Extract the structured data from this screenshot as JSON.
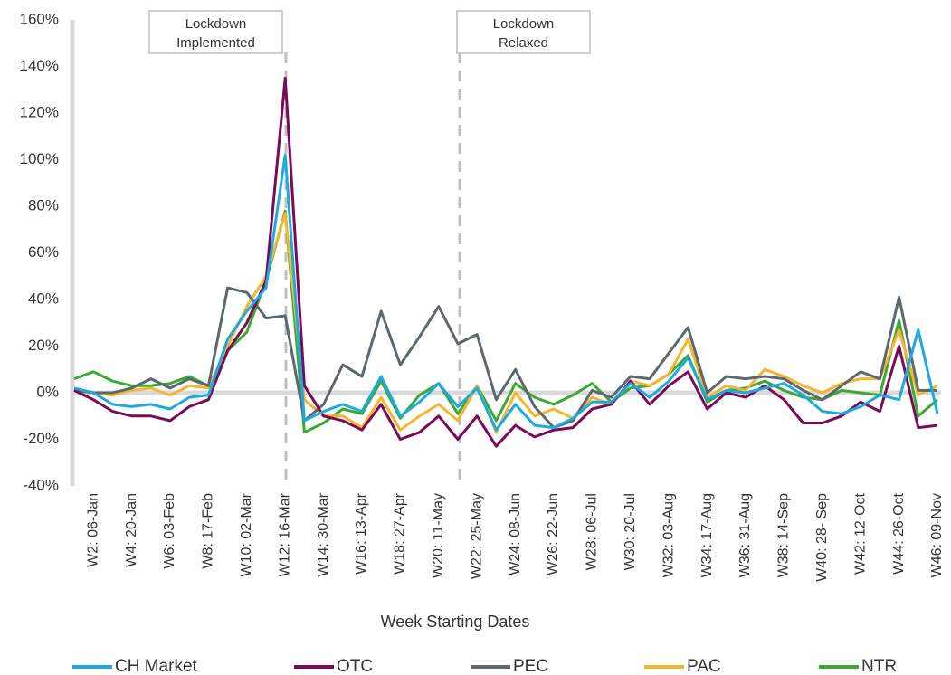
{
  "chart_data": {
    "type": "line",
    "xlabel": "Week Starting Dates",
    "categories": [
      null,
      "W2: 06-Jan",
      null,
      "W4: 20-Jan",
      null,
      "W6: 03-Feb",
      null,
      "W8: 17-Feb",
      null,
      "W10: 02-Mar",
      null,
      "W12: 16-Mar",
      null,
      "W14: 30-Mar",
      null,
      "W16: 13-Apr",
      null,
      "W18: 27-Apr",
      null,
      "W20: 11-May",
      null,
      "W22: 25-May",
      null,
      "W24: 08-Jun",
      null,
      "W26: 22-Jun",
      null,
      "W28: 06-Jul",
      null,
      "W30: 20-Jul",
      null,
      "W32: 03-Aug",
      null,
      "W34: 17-Aug",
      null,
      "W36: 31-Aug",
      null,
      "W38: 14-Sep",
      null,
      "W40: 28- Sep",
      null,
      "W42: 12-Oct",
      null,
      "W44: 26-Oct",
      null,
      "W46: 09-Nov"
    ],
    "series": [
      {
        "name": "CH Market",
        "color": "#1ea9e1",
        "values": [
          2,
          0,
          -5,
          -6,
          -5,
          -7,
          -2,
          -1,
          23,
          35,
          45,
          102,
          -12,
          -8,
          -5,
          -8,
          7,
          -10,
          -4,
          4,
          -6,
          2,
          -16,
          -5,
          -14,
          -15,
          -11,
          -4,
          -4,
          4,
          -2,
          5,
          15,
          -3,
          1,
          0,
          2,
          4,
          -1,
          -8,
          -9,
          -6,
          -1,
          -3,
          27,
          -9
        ]
      },
      {
        "name": "OTC",
        "color": "#7b0a58",
        "values": [
          1,
          -3,
          -8,
          -10,
          -10,
          -12,
          -6,
          -3,
          18,
          30,
          48,
          135,
          3,
          -10,
          -12,
          -16,
          -5,
          -20,
          -17,
          -10,
          -20,
          -10,
          -23,
          -14,
          -19,
          -16,
          -15,
          -7,
          -5,
          5,
          -5,
          3,
          9,
          -7,
          0,
          -2,
          3,
          -3,
          -13,
          -13,
          -10,
          -4,
          -8,
          20,
          -15,
          -14
        ]
      },
      {
        "name": "PEC",
        "color": "#5d6770",
        "values": [
          1,
          0,
          0,
          2,
          6,
          2,
          6,
          3,
          45,
          43,
          32,
          33,
          -12,
          -5,
          12,
          7,
          35,
          12,
          24,
          37,
          21,
          25,
          -3,
          10,
          -6,
          -15,
          -12,
          1,
          -2,
          7,
          6,
          17,
          28,
          0,
          7,
          6,
          7,
          6,
          1,
          -3,
          3,
          9,
          6,
          41,
          1,
          1
        ]
      },
      {
        "name": "PAC",
        "color": "#f5b52e",
        "values": [
          1,
          0,
          -1,
          1,
          2,
          -1,
          3,
          2,
          20,
          37,
          50,
          77,
          -3,
          -10,
          -10,
          -15,
          -2,
          -16,
          -10,
          -5,
          -12,
          3,
          -17,
          0,
          -10,
          -7,
          -11,
          -2,
          -5,
          5,
          3,
          8,
          23,
          -2,
          3,
          1,
          10,
          7,
          3,
          0,
          4,
          6,
          6,
          27,
          -1,
          3
        ]
      },
      {
        "name": "NTR",
        "color": "#3aaa35",
        "values": [
          6,
          9,
          5,
          3,
          3,
          4,
          7,
          3,
          18,
          26,
          48,
          78,
          -17,
          -13,
          -7,
          -9,
          5,
          -11,
          -1,
          4,
          -9,
          3,
          -12,
          4,
          -2,
          -5,
          -1,
          4,
          -4,
          2,
          3,
          8,
          16,
          -4,
          1,
          2,
          5,
          1,
          -2,
          -3,
          1,
          0,
          -1,
          31,
          -10,
          -3
        ]
      }
    ],
    "ylim": [
      -40,
      160
    ],
    "yticks": [
      {
        "value": -40,
        "label": "-40%"
      },
      {
        "value": -20,
        "label": "-20%"
      },
      {
        "value": 0,
        "label": "0%"
      },
      {
        "value": 20,
        "label": "20%"
      },
      {
        "value": 40,
        "label": "40%"
      },
      {
        "value": 60,
        "label": "60%"
      },
      {
        "value": 80,
        "label": "80%"
      },
      {
        "value": 100,
        "label": "100%"
      },
      {
        "value": 120,
        "label": "120%"
      },
      {
        "value": 140,
        "label": "140%"
      },
      {
        "value": 160,
        "label": "160%"
      }
    ],
    "annotations": [
      {
        "text": [
          "Lockdown",
          "Implemented"
        ]
      },
      {
        "text": [
          "Lockdown",
          "Relaxed"
        ]
      }
    ],
    "legend": "bottom"
  }
}
